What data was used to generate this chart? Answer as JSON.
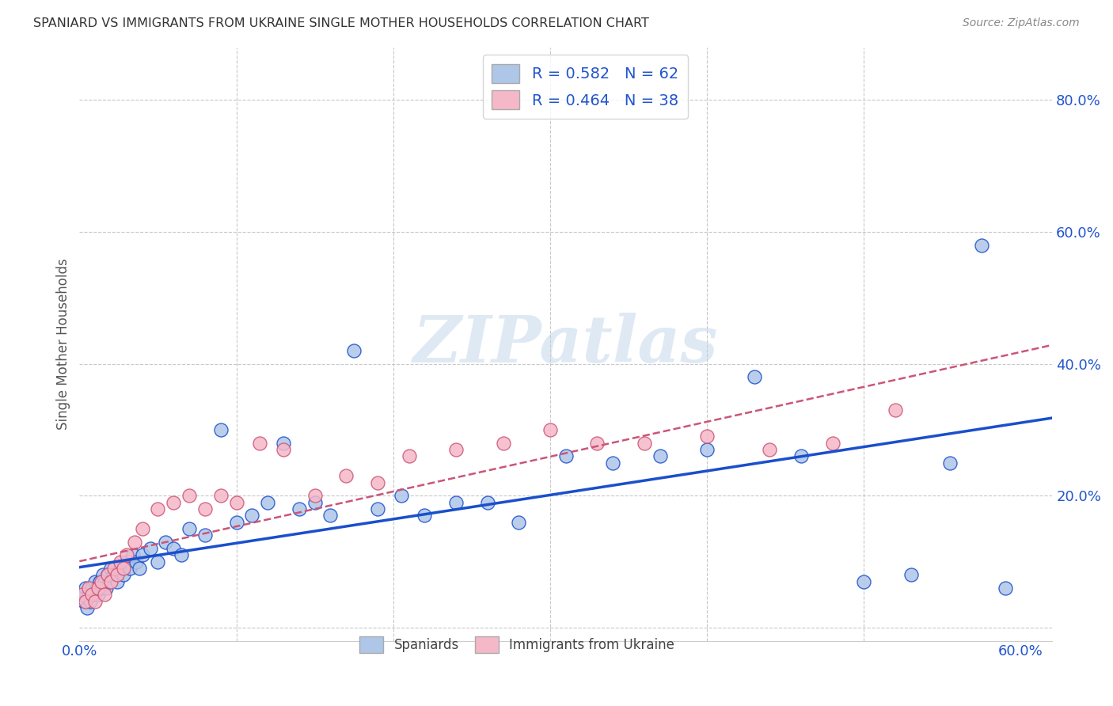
{
  "title": "SPANIARD VS IMMIGRANTS FROM UKRAINE SINGLE MOTHER HOUSEHOLDS CORRELATION CHART",
  "source": "Source: ZipAtlas.com",
  "ylabel": "Single Mother Households",
  "xlim": [
    0.0,
    0.62
  ],
  "ylim": [
    -0.02,
    0.88
  ],
  "blue_color": "#aec6e8",
  "pink_color": "#f5b8c8",
  "blue_line_color": "#1a4fcc",
  "pink_line_color": "#cc5577",
  "grid_color": "#c8c8c8",
  "watermark_text": "ZIPatlas",
  "legend_R1": "R = 0.582",
  "legend_N1": "N = 62",
  "legend_R2": "R = 0.464",
  "legend_N2": "N = 38",
  "spaniards_x": [
    0.002,
    0.003,
    0.004,
    0.005,
    0.006,
    0.007,
    0.008,
    0.009,
    0.01,
    0.011,
    0.012,
    0.013,
    0.014,
    0.015,
    0.016,
    0.017,
    0.018,
    0.019,
    0.02,
    0.022,
    0.024,
    0.026,
    0.028,
    0.03,
    0.032,
    0.034,
    0.036,
    0.038,
    0.04,
    0.045,
    0.05,
    0.055,
    0.06,
    0.065,
    0.07,
    0.08,
    0.09,
    0.1,
    0.11,
    0.12,
    0.13,
    0.14,
    0.15,
    0.16,
    0.175,
    0.19,
    0.205,
    0.22,
    0.24,
    0.26,
    0.28,
    0.31,
    0.34,
    0.37,
    0.4,
    0.43,
    0.46,
    0.5,
    0.53,
    0.555,
    0.575,
    0.59
  ],
  "spaniards_y": [
    0.05,
    0.04,
    0.06,
    0.03,
    0.05,
    0.04,
    0.06,
    0.05,
    0.07,
    0.06,
    0.05,
    0.07,
    0.06,
    0.08,
    0.07,
    0.06,
    0.08,
    0.07,
    0.09,
    0.08,
    0.07,
    0.09,
    0.08,
    0.1,
    0.09,
    0.11,
    0.1,
    0.09,
    0.11,
    0.12,
    0.1,
    0.13,
    0.12,
    0.11,
    0.15,
    0.14,
    0.3,
    0.16,
    0.17,
    0.19,
    0.28,
    0.18,
    0.19,
    0.17,
    0.42,
    0.18,
    0.2,
    0.17,
    0.19,
    0.19,
    0.16,
    0.26,
    0.25,
    0.26,
    0.27,
    0.38,
    0.26,
    0.07,
    0.08,
    0.25,
    0.58,
    0.06
  ],
  "ukraine_x": [
    0.002,
    0.004,
    0.006,
    0.008,
    0.01,
    0.012,
    0.014,
    0.016,
    0.018,
    0.02,
    0.022,
    0.024,
    0.026,
    0.028,
    0.03,
    0.035,
    0.04,
    0.05,
    0.06,
    0.07,
    0.08,
    0.09,
    0.1,
    0.115,
    0.13,
    0.15,
    0.17,
    0.19,
    0.21,
    0.24,
    0.27,
    0.3,
    0.33,
    0.36,
    0.4,
    0.44,
    0.48,
    0.52
  ],
  "ukraine_y": [
    0.05,
    0.04,
    0.06,
    0.05,
    0.04,
    0.06,
    0.07,
    0.05,
    0.08,
    0.07,
    0.09,
    0.08,
    0.1,
    0.09,
    0.11,
    0.13,
    0.15,
    0.18,
    0.19,
    0.2,
    0.18,
    0.2,
    0.19,
    0.28,
    0.27,
    0.2,
    0.23,
    0.22,
    0.26,
    0.27,
    0.28,
    0.3,
    0.28,
    0.28,
    0.29,
    0.27,
    0.28,
    0.33
  ]
}
